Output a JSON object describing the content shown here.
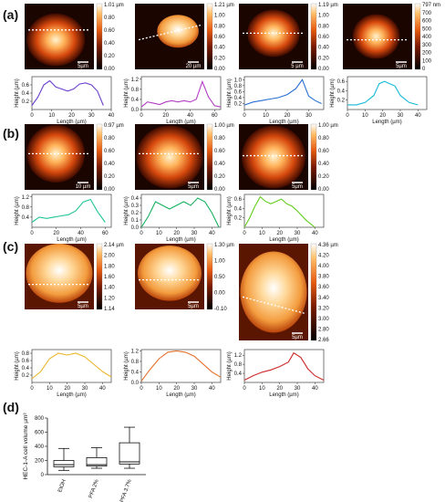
{
  "panels": {
    "a": {
      "label": "(a)",
      "images": [
        {
          "ticks": [
            "1.01 µm",
            "0.80",
            "0.60",
            "0.40",
            "0.20",
            "0.00"
          ],
          "scalebar": "5µm"
        },
        {
          "ticks": [
            "1.21 µm",
            "1.00",
            "0.80",
            "0.60",
            "0.40",
            "0.20",
            "0.00"
          ],
          "scalebar": "20 µm"
        },
        {
          "ticks": [
            "1.19 µm",
            "1.00",
            "0.80",
            "0.60",
            "0.40",
            "0.20",
            "0.00"
          ],
          "scalebar": "5 µm"
        },
        {
          "ticks": [
            "797 nm",
            "700",
            "600",
            "500",
            "400",
            "300",
            "200",
            "100",
            "0"
          ],
          "scalebar": "5µm"
        }
      ],
      "profiles": [
        {
          "color": "#6a3fd0",
          "x": [
            0,
            3,
            6,
            9,
            12,
            15,
            18,
            21,
            24,
            27,
            30,
            33,
            36
          ],
          "y": [
            0.1,
            0.3,
            0.6,
            0.7,
            0.55,
            0.5,
            0.45,
            0.5,
            0.62,
            0.65,
            0.6,
            0.45,
            0.1
          ],
          "yticks": [
            "0.2",
            "0.4",
            "0.6"
          ],
          "xticks": [
            "0",
            "10",
            "20",
            "30",
            "40"
          ],
          "xlim": [
            0,
            40
          ],
          "ylim": [
            0,
            0.8
          ]
        },
        {
          "color": "#b33ec4",
          "x": [
            0,
            5,
            10,
            15,
            20,
            25,
            30,
            35,
            40,
            45,
            50,
            55,
            60,
            65
          ],
          "y": [
            0.1,
            0.3,
            0.25,
            0.2,
            0.3,
            0.35,
            0.3,
            0.35,
            0.3,
            0.4,
            1.1,
            0.5,
            0.15,
            0.1
          ],
          "yticks": [
            "0.0",
            "0.4",
            "0.8",
            "1.2"
          ],
          "xticks": [
            "0",
            "20",
            "40",
            "60"
          ],
          "xlim": [
            0,
            65
          ],
          "ylim": [
            0,
            1.3
          ]
        },
        {
          "color": "#2a6fd1",
          "x": [
            0,
            4,
            8,
            12,
            16,
            20,
            24,
            27,
            30,
            33,
            36
          ],
          "y": [
            0.15,
            0.25,
            0.3,
            0.35,
            0.4,
            0.5,
            0.7,
            1.0,
            0.45,
            0.3,
            0.2
          ],
          "yticks": [
            "0.2",
            "0.4",
            "0.6",
            "0.8",
            "1.0"
          ],
          "xticks": [
            "0",
            "10",
            "20",
            "30"
          ],
          "xlim": [
            0,
            37
          ],
          "ylim": [
            0,
            1.1
          ]
        },
        {
          "color": "#17b9d6",
          "x": [
            0,
            5,
            10,
            15,
            18,
            21,
            24,
            27,
            30,
            35,
            40
          ],
          "y": [
            0.1,
            0.1,
            0.15,
            0.3,
            0.55,
            0.6,
            0.55,
            0.5,
            0.3,
            0.15,
            0.1
          ],
          "yticks": [
            "0.2",
            "0.4",
            "0.6"
          ],
          "xticks": [
            "0",
            "10",
            "20",
            "30",
            "40"
          ],
          "xlim": [
            0,
            45
          ],
          "ylim": [
            0,
            0.7
          ]
        }
      ],
      "xlabel": "Length (µm)",
      "ylabel": "Height (µm)"
    },
    "b": {
      "label": "(b)",
      "images": [
        {
          "ticks": [
            "0.97 µm",
            "0.80",
            "0.60",
            "0.40",
            "0.20",
            "0.00"
          ],
          "scalebar": "10 µm"
        },
        {
          "ticks": [
            "1.00 µm",
            "0.80",
            "0.60",
            "0.40",
            "0.20",
            "0.00"
          ],
          "scalebar": "5µm"
        },
        {
          "ticks": [
            "1.00 µm",
            "0.80",
            "0.60",
            "0.40",
            "0.20",
            "0.00"
          ],
          "scalebar": "5µm"
        }
      ],
      "profiles": [
        {
          "color": "#1fc495",
          "x": [
            0,
            6,
            12,
            18,
            24,
            30,
            36,
            42,
            48,
            54,
            60
          ],
          "y": [
            0.2,
            0.4,
            0.35,
            0.4,
            0.45,
            0.5,
            0.65,
            1.0,
            1.1,
            0.6,
            0.2
          ],
          "yticks": [
            "0.4",
            "0.8",
            "1.2"
          ],
          "xticks": [
            "0",
            "20",
            "40",
            "60"
          ],
          "xlim": [
            0,
            65
          ],
          "ylim": [
            0,
            1.3
          ]
        },
        {
          "color": "#15b15c",
          "x": [
            0,
            4,
            8,
            12,
            16,
            20,
            24,
            28,
            32,
            36,
            40,
            44
          ],
          "y": [
            0.0,
            0.15,
            0.35,
            0.3,
            0.25,
            0.3,
            0.35,
            0.3,
            0.4,
            0.35,
            0.2,
            0.0
          ],
          "yticks": [
            "0.0",
            "0.1",
            "0.2",
            "0.3",
            "0.4"
          ],
          "xticks": [
            "0",
            "10",
            "20",
            "30",
            "40"
          ],
          "xlim": [
            0,
            45
          ],
          "ylim": [
            0,
            0.45
          ]
        },
        {
          "color": "#63cd1e",
          "x": [
            0,
            3,
            6,
            9,
            12,
            15,
            18,
            21,
            24,
            27,
            30,
            35,
            40
          ],
          "y": [
            0.0,
            0.2,
            0.45,
            0.65,
            0.55,
            0.5,
            0.55,
            0.6,
            0.5,
            0.45,
            0.35,
            0.15,
            0.0
          ],
          "yticks": [
            "0.2",
            "0.4",
            "0.6"
          ],
          "xticks": [
            "0",
            "10",
            "20",
            "30",
            "40"
          ],
          "xlim": [
            0,
            45
          ],
          "ylim": [
            0,
            0.7
          ]
        }
      ],
      "xlabel": "Length (µm)",
      "ylabel": "Height (µm)"
    },
    "c": {
      "label": "(c)",
      "images": [
        {
          "ticks": [
            "2.14 µm",
            "2.00",
            "1.80",
            "1.60",
            "1.40",
            "1.20",
            "1.14"
          ],
          "scalebar": "5µm"
        },
        {
          "ticks": [
            "1.30 µm",
            "1.00",
            "0.50",
            "0.00",
            "-0.10"
          ],
          "scalebar": "5µm"
        },
        {
          "ticks": [
            "4.36 µm",
            "4.20",
            "4.00",
            "3.80",
            "3.60",
            "3.40",
            "3.20",
            "3.00",
            "2.80",
            "2.66"
          ],
          "scalebar": "5µm"
        }
      ],
      "profiles": [
        {
          "color": "#eab62c",
          "x": [
            0,
            5,
            10,
            15,
            20,
            25,
            30,
            35,
            40,
            45
          ],
          "y": [
            0.1,
            0.3,
            0.65,
            0.8,
            0.75,
            0.8,
            0.7,
            0.5,
            0.3,
            0.15
          ],
          "yticks": [
            "0.2",
            "0.4",
            "0.6",
            "0.8"
          ],
          "xticks": [
            "0",
            "10",
            "20",
            "30",
            "40"
          ],
          "xlim": [
            0,
            45
          ],
          "ylim": [
            0,
            0.9
          ]
        },
        {
          "color": "#e5722c",
          "x": [
            0,
            5,
            10,
            15,
            20,
            25,
            30,
            35,
            40,
            45
          ],
          "y": [
            0.05,
            0.5,
            0.9,
            1.15,
            1.2,
            1.15,
            1.0,
            0.7,
            0.4,
            0.2
          ],
          "yticks": [
            "0.0",
            "0.4",
            "0.8",
            "1.2"
          ],
          "xticks": [
            "0",
            "10",
            "20",
            "30",
            "40"
          ],
          "xlim": [
            0,
            45
          ],
          "ylim": [
            0,
            1.25
          ]
        },
        {
          "color": "#cc2a2a",
          "x": [
            0,
            5,
            10,
            15,
            20,
            25,
            28,
            32,
            36,
            40,
            45
          ],
          "y": [
            0.1,
            0.3,
            0.45,
            0.55,
            0.7,
            0.9,
            1.3,
            1.1,
            0.6,
            0.3,
            0.1
          ],
          "yticks": [
            "0.4",
            "0.8",
            "1.2"
          ],
          "xticks": [
            "0",
            "10",
            "20",
            "30",
            "40"
          ],
          "xlim": [
            0,
            45
          ],
          "ylim": [
            0,
            1.45
          ]
        }
      ],
      "xlabel": "Length (µm)",
      "ylabel": "Height (µm)"
    },
    "d": {
      "label": "(d)",
      "chart_data": {
        "type": "box",
        "categories": [
          "EtOH",
          "PFA 2%",
          "PFA 3.7%"
        ],
        "ylabel": "HEC-1-A  cell volume µm³",
        "yticks": [
          0,
          200,
          400,
          600,
          800
        ],
        "ylim": [
          0,
          800
        ],
        "boxes": [
          {
            "min": 60,
            "q1": 110,
            "median": 140,
            "q3": 200,
            "max": 370
          },
          {
            "min": 90,
            "q1": 120,
            "median": 140,
            "q3": 240,
            "max": 380
          },
          {
            "min": 90,
            "q1": 150,
            "median": 180,
            "q3": 450,
            "max": 670
          }
        ]
      }
    }
  }
}
